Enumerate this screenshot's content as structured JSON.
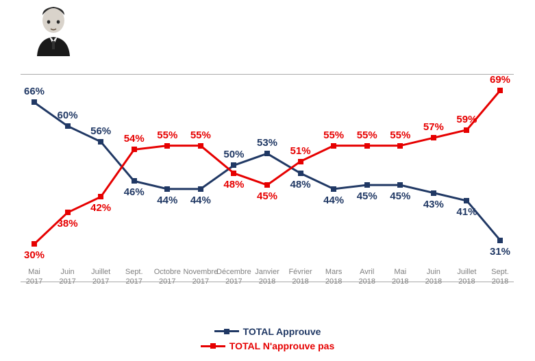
{
  "chart": {
    "type": "line",
    "ylim": [
      25,
      72
    ],
    "background_color": "#ffffff",
    "border_color": "#aaaaaa",
    "marker": "square",
    "marker_size": 8,
    "line_width": 3,
    "label_fontsize": 15,
    "label_fontweight": "bold",
    "axis_label_fontsize": 11,
    "axis_label_color": "#7f7f7f",
    "categories": [
      {
        "line1": "Mai",
        "line2": "2017"
      },
      {
        "line1": "Juin",
        "line2": "2017"
      },
      {
        "line1": "Juillet",
        "line2": "2017"
      },
      {
        "line1": "Sept.",
        "line2": "2017"
      },
      {
        "line1": "Octobre",
        "line2": "2017"
      },
      {
        "line1": "Novembre",
        "line2": "2017"
      },
      {
        "line1": "Décembre",
        "line2": "2017"
      },
      {
        "line1": "Janvier",
        "line2": "2018"
      },
      {
        "line1": "Février",
        "line2": "2018"
      },
      {
        "line1": "Mars",
        "line2": "2018"
      },
      {
        "line1": "Avril",
        "line2": "2018"
      },
      {
        "line1": "Mai",
        "line2": "2018"
      },
      {
        "line1": "Juin",
        "line2": "2018"
      },
      {
        "line1": "Juillet",
        "line2": "2018"
      },
      {
        "line1": "Sept.",
        "line2": "2018"
      }
    ],
    "series": [
      {
        "name": "TOTAL Approuve",
        "color": "#203864",
        "values": [
          66,
          60,
          56,
          46,
          44,
          44,
          50,
          53,
          48,
          44,
          45,
          45,
          43,
          41,
          31
        ],
        "label_side": [
          "above",
          "above",
          "above",
          "below",
          "below",
          "below",
          "above",
          "above",
          "below",
          "below",
          "below",
          "below",
          "below",
          "below",
          "below"
        ]
      },
      {
        "name": "TOTAL N'approuve pas",
        "color": "#e60000",
        "values": [
          30,
          38,
          42,
          54,
          55,
          55,
          48,
          45,
          51,
          55,
          55,
          55,
          57,
          59,
          69
        ],
        "label_side": [
          "below",
          "below",
          "below",
          "above",
          "above",
          "above",
          "below",
          "below",
          "above",
          "above",
          "above",
          "above",
          "above",
          "above",
          "above"
        ]
      }
    ]
  },
  "legend": {
    "fontsize": 14,
    "fontweight": "bold"
  }
}
